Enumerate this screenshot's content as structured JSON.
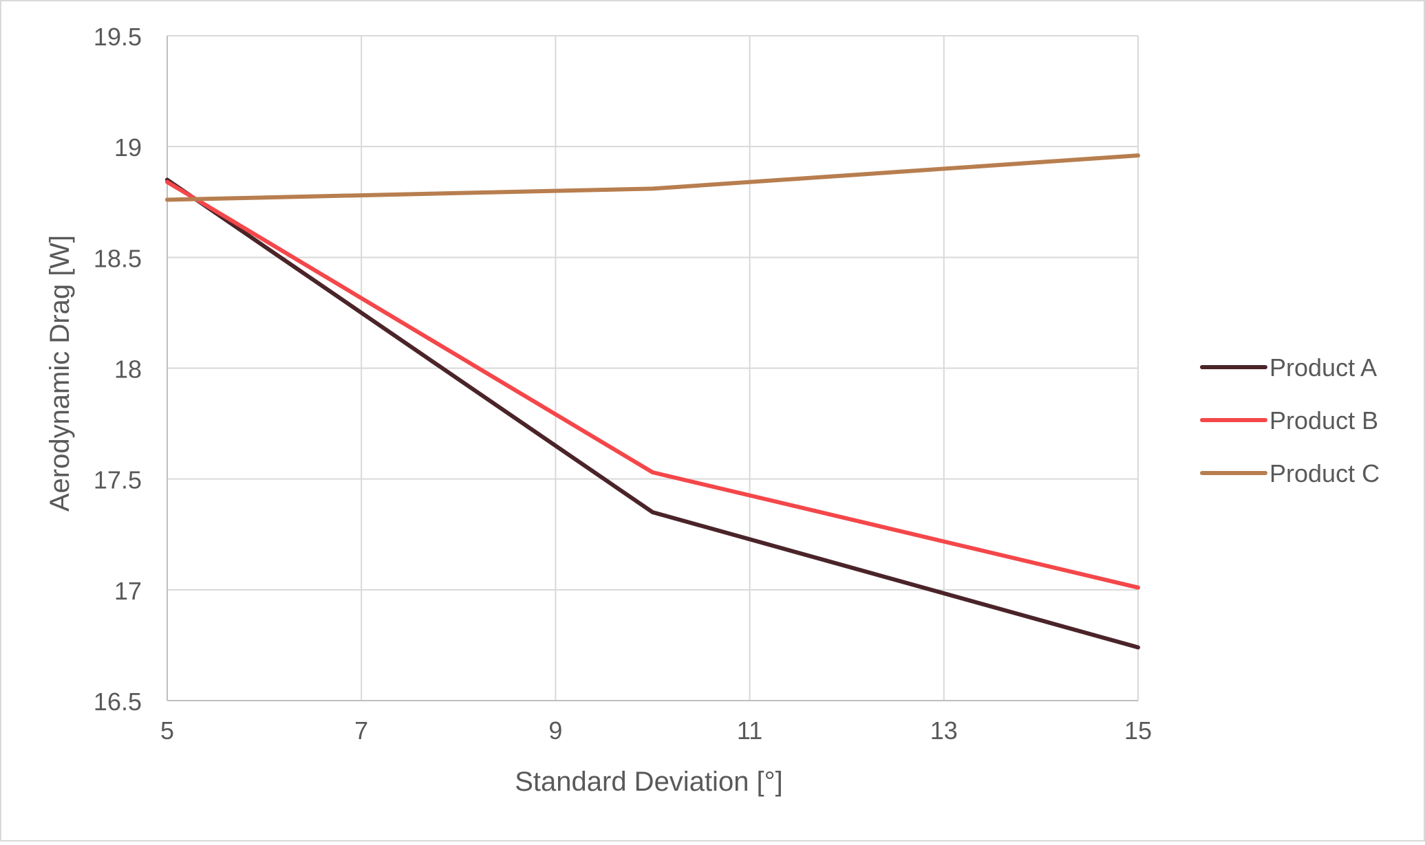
{
  "chart_data": {
    "type": "line",
    "title": "",
    "xlabel": "Standard Deviation [°]",
    "ylabel": "Aerodynamic Drag [W]",
    "xlim": [
      5,
      15
    ],
    "ylim": [
      16.5,
      19.5
    ],
    "xticks": [
      "5",
      "7",
      "9",
      "11",
      "13",
      "15"
    ],
    "yticks": [
      "16.5",
      "17",
      "17.5",
      "18",
      "18.5",
      "19",
      "19.5"
    ],
    "grid": true,
    "legend_position": "right",
    "series": [
      {
        "name": "Product A",
        "color": "#4a2429",
        "x": [
          5,
          10,
          15
        ],
        "y": [
          18.85,
          17.35,
          16.74
        ]
      },
      {
        "name": "Product B",
        "color": "#f4474a",
        "x": [
          5,
          10,
          15
        ],
        "y": [
          18.84,
          17.53,
          17.01
        ]
      },
      {
        "name": "Product C",
        "color": "#b87e4f",
        "x": [
          5,
          10,
          15
        ],
        "y": [
          18.76,
          18.81,
          18.96
        ]
      }
    ],
    "colors": {
      "grid": "#d9d9d9",
      "axis": "#bfbfbf",
      "text": "#595959",
      "frame": "#d9d9d9"
    }
  }
}
